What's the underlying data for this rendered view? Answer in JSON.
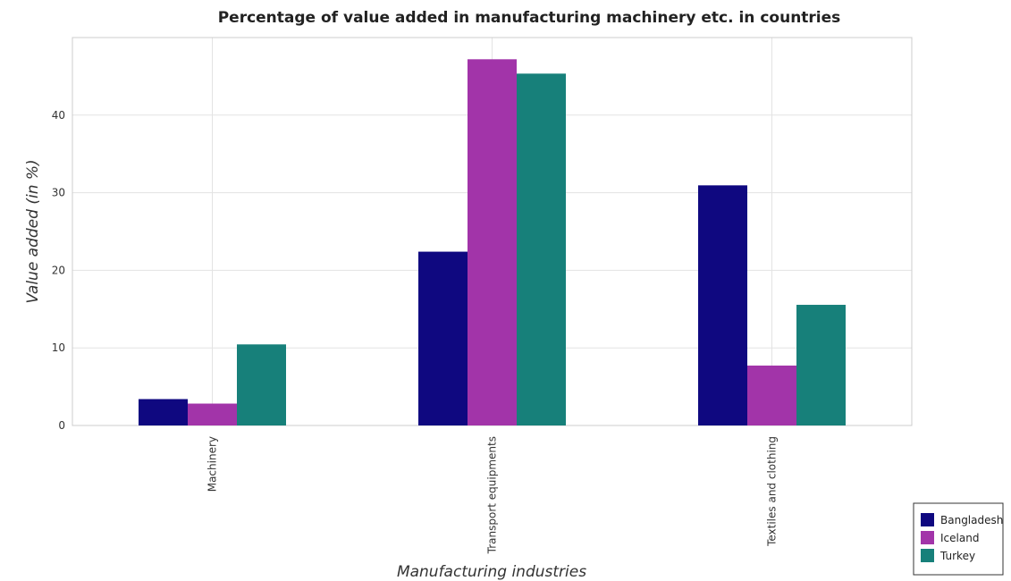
{
  "chart_data": {
    "type": "bar",
    "title": "Percentage of value added in manufacturing machinery etc. in countries",
    "xlabel": "Manufacturing industries",
    "ylabel": "Value added (in %)",
    "categories": [
      "Machinery",
      "Transport equipments",
      "Textiles and clothing"
    ],
    "series": [
      {
        "name": "Bangladesh",
        "color": "#0f0880",
        "values": [
          3.4,
          22.4,
          30.95
        ]
      },
      {
        "name": "Iceland",
        "color": "#a234a9",
        "values": [
          2.82,
          47.2,
          7.72
        ]
      },
      {
        "name": "Turkey",
        "color": "#17807a",
        "values": [
          10.45,
          45.35,
          15.55
        ]
      }
    ],
    "ylim": [
      0,
      50
    ],
    "yticks": [
      0,
      10,
      20,
      30,
      40
    ],
    "grid": true,
    "legend_position": "bottom-right"
  }
}
